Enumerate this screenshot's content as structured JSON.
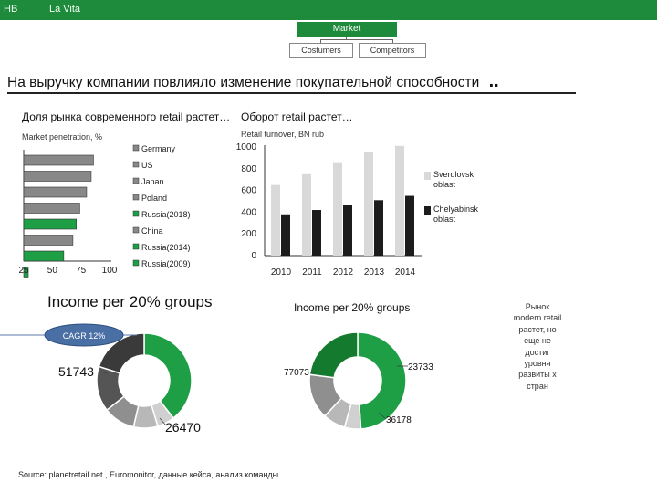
{
  "header": {
    "left_label": "HB",
    "app_title": "La Vita"
  },
  "tree": {
    "root": "Market",
    "children": [
      "Costumers",
      "Competitors"
    ]
  },
  "headline": "На выручку компании повлияло изменение покупательной способности",
  "headline_dots": "..",
  "sidenote": "Рынок modern retail растет, но еще не достиг уровня развиты х стран",
  "source": "Source:  planetretail.net ,  Euromonitor,  данные кейса, анализ команды",
  "cagr_badge": "CAGR 12%",
  "colors": {
    "green": "#1e9e45",
    "dark_green": "#147a2e",
    "grey": "#888888",
    "light_grey": "#d4d4d4",
    "dark": "#222222"
  },
  "chart_data": [
    {
      "type": "bar",
      "orientation": "horizontal",
      "title": "Доля рынка современного retail растет…",
      "subtitle": "Market penetration, %",
      "categories": [
        "Germany",
        "US",
        "Japan",
        "Poland",
        "Russia(2018)",
        "China",
        "Russia(2014)",
        "Russia(2009)"
      ],
      "values": [
        86,
        84,
        80,
        74,
        71,
        68,
        60,
        29
      ],
      "highlight": [
        "Russia(2018)",
        "Russia(2014)",
        "Russia(2009)"
      ],
      "xticks": [
        "25",
        "50",
        "75",
        "100"
      ],
      "xlim": [
        25,
        100
      ]
    },
    {
      "type": "bar",
      "title": "Оборот retail растет…",
      "subtitle": "Retail turnover, BN rub",
      "categories": [
        "2010",
        "2011",
        "2012",
        "2013",
        "2014"
      ],
      "yticks": [
        "0",
        "200",
        "400",
        "600",
        "800",
        "1000"
      ],
      "ylim": [
        0,
        1000
      ],
      "series": [
        {
          "name": "Sverdlovsk oblast",
          "values": [
            650,
            750,
            860,
            950,
            1010
          ],
          "color": "#d9d9d9"
        },
        {
          "name": "Chelyabinsk oblast",
          "values": [
            380,
            420,
            470,
            510,
            550
          ],
          "color": "#1c1c1c"
        }
      ]
    },
    {
      "type": "pie",
      "donut": true,
      "title": "Income per 20% groups",
      "values": [
        51743,
        7800,
        10800,
        14200,
        20200,
        26470
      ],
      "colors": [
        "#1e9e45",
        "#d0d0d0",
        "#b8b8b8",
        "#8f8f8f",
        "#555555",
        "#3a3a3a"
      ],
      "labels": [
        "51743",
        "",
        "",
        "",
        "",
        "26470"
      ]
    },
    {
      "type": "pie",
      "donut": true,
      "title": "Income per 20% groups",
      "values": [
        77073,
        8600,
        11900,
        23733,
        36178
      ],
      "colors": [
        "#1e9e45",
        "#d0d0d0",
        "#b8b8b8",
        "#8f8f8f",
        "#147a2e"
      ],
      "labels": [
        "77073",
        "",
        "",
        "23733",
        "36178"
      ]
    }
  ]
}
